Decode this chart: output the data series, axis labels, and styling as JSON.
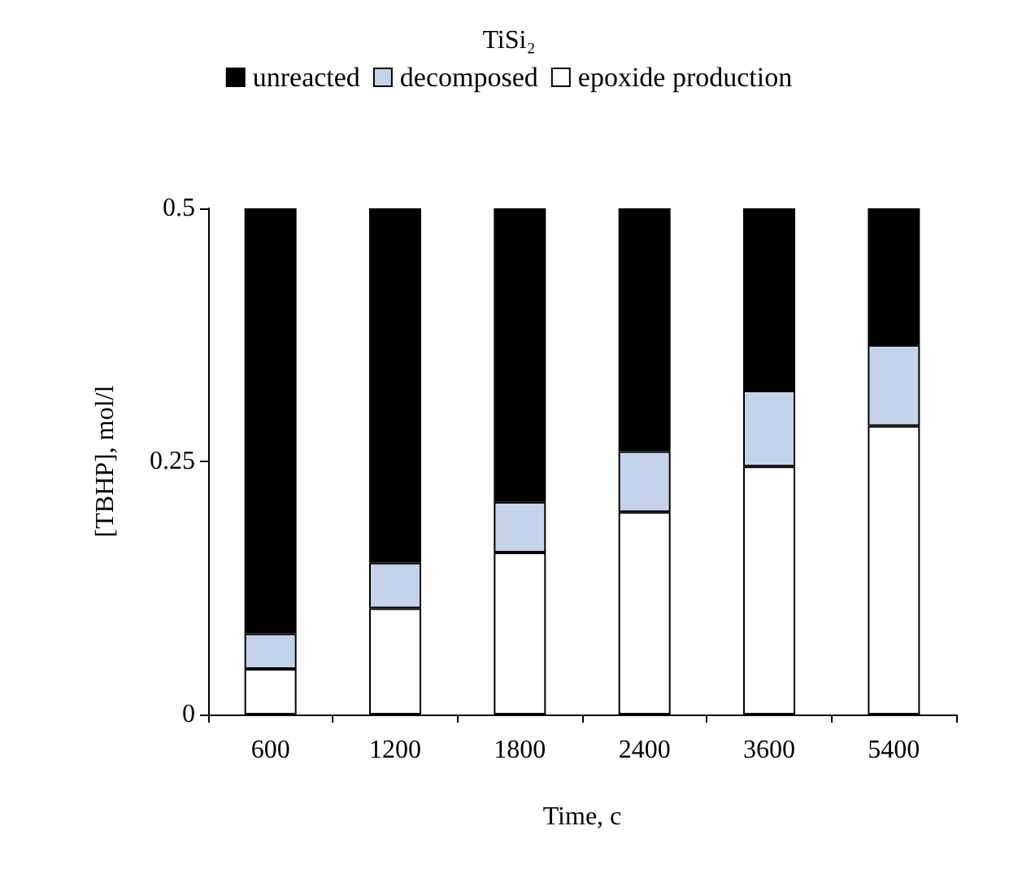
{
  "chart_data": {
    "type": "bar",
    "title": "TiSi₂",
    "xlabel": "Time, c",
    "ylabel": "[TBHP], mol/l",
    "categories": [
      "600",
      "1200",
      "1800",
      "2400",
      "3600",
      "5400"
    ],
    "stacked": true,
    "series": [
      {
        "name": "epoxide production",
        "color": "#ffffff",
        "values": [
          0.045,
          0.105,
          0.16,
          0.2,
          0.245,
          0.285
        ]
      },
      {
        "name": "decomposed",
        "color": "#c5d3ea",
        "values": [
          0.035,
          0.045,
          0.05,
          0.06,
          0.075,
          0.08
        ]
      },
      {
        "name": "unreacted",
        "color": "#000000",
        "values": [
          0.42,
          0.35,
          0.29,
          0.24,
          0.18,
          0.135
        ]
      }
    ],
    "ylim": [
      0,
      0.5
    ],
    "yticks": [
      0,
      0.25,
      0.5
    ],
    "grid": false,
    "legend": "top"
  }
}
